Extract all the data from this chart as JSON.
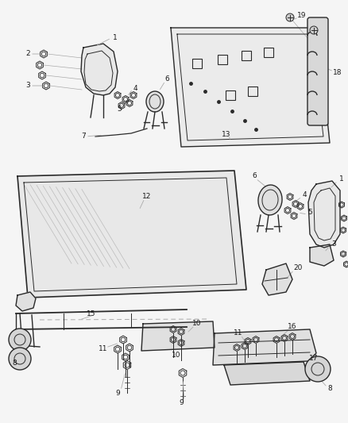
{
  "background_color": "#f5f5f5",
  "line_color": "#2a2a2a",
  "label_color": "#1a1a1a",
  "fig_width": 4.38,
  "fig_height": 5.33,
  "dpi": 100
}
